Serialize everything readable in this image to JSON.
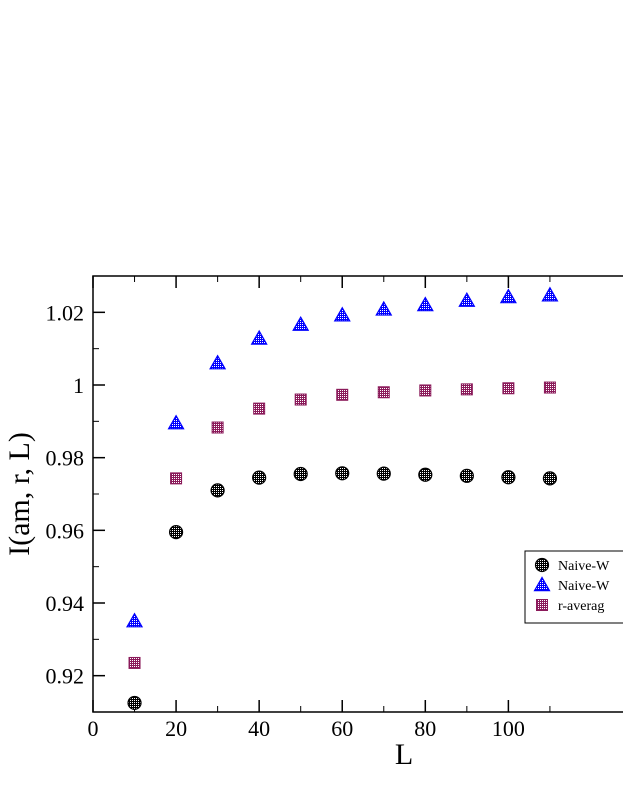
{
  "chart_data": {
    "type": "scatter",
    "title": "",
    "xlabel": "L",
    "ylabel": "I(am, r, L)",
    "xlim": [
      0,
      130
    ],
    "ylim": [
      0.91,
      1.03
    ],
    "x_ticks": [
      0,
      20,
      40,
      60,
      80,
      100
    ],
    "x_tick_labels": [
      "0",
      "20",
      "40",
      "60",
      "80",
      "100"
    ],
    "y_ticks": [
      0.92,
      0.94,
      0.96,
      0.98,
      1.0,
      1.02
    ],
    "y_tick_labels": [
      "0.92",
      "0.94",
      "0.96",
      "0.98",
      "1",
      "1.02"
    ],
    "grid": false,
    "legend_position": "right",
    "series": [
      {
        "name": "Naive-W",
        "marker": "circle",
        "color": "#000000",
        "x": [
          10,
          20,
          30,
          40,
          50,
          60,
          70,
          80,
          90,
          100,
          110
        ],
        "y": [
          0.9125,
          0.9595,
          0.971,
          0.9745,
          0.9755,
          0.9757,
          0.9756,
          0.9753,
          0.975,
          0.9746,
          0.9743
        ]
      },
      {
        "name": "Naive-W",
        "marker": "triangle",
        "color": "#0000ff",
        "x": [
          10,
          20,
          30,
          40,
          50,
          60,
          70,
          80,
          90,
          100,
          110
        ],
        "y": [
          0.935,
          0.9895,
          1.006,
          1.0128,
          1.0166,
          1.0192,
          1.0208,
          1.022,
          1.0232,
          1.0242,
          1.0247
        ]
      },
      {
        "name": "r-averag",
        "marker": "square",
        "color": "#8b1a5a",
        "x": [
          10,
          20,
          30,
          40,
          50,
          60,
          70,
          80,
          90,
          100,
          110
        ],
        "y": [
          0.9235,
          0.9743,
          0.9883,
          0.9935,
          0.996,
          0.9973,
          0.998,
          0.9985,
          0.9988,
          0.9991,
          0.9993
        ]
      }
    ]
  }
}
